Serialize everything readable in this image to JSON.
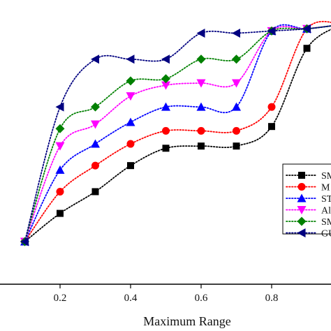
{
  "chart_data": {
    "type": "line",
    "xlabel": "Maximum Range",
    "ylabel": "",
    "xlim": [
      0.0,
      1.0
    ],
    "ylim": [
      0.0,
      1.0
    ],
    "xticks": [
      0.2,
      0.4,
      0.6,
      0.8
    ],
    "xtick_labels": [
      "0.2",
      "0.4",
      "0.6",
      "0.8"
    ],
    "legend_position": "right",
    "smoothed": true,
    "series": [
      {
        "name": "SM",
        "color": "#000000",
        "marker": "square",
        "x": [
          0.1,
          0.2,
          0.3,
          0.4,
          0.5,
          0.6,
          0.7,
          0.8,
          0.9,
          1.0
        ],
        "y": [
          0.0,
          0.13,
          0.23,
          0.35,
          0.43,
          0.44,
          0.44,
          0.53,
          0.89,
          1.0
        ]
      },
      {
        "name": "M",
        "color": "#ff0000",
        "marker": "circle",
        "x": [
          0.1,
          0.2,
          0.3,
          0.4,
          0.5,
          0.6,
          0.7,
          0.8,
          0.9,
          1.0
        ],
        "y": [
          0.0,
          0.23,
          0.35,
          0.45,
          0.51,
          0.51,
          0.51,
          0.62,
          0.98,
          1.0
        ]
      },
      {
        "name": "ST",
        "color": "#0000ff",
        "marker": "triangle-up",
        "x": [
          0.1,
          0.2,
          0.3,
          0.4,
          0.5,
          0.6,
          0.7,
          0.8,
          0.9,
          1.0
        ],
        "y": [
          0.0,
          0.33,
          0.45,
          0.55,
          0.62,
          0.62,
          0.62,
          0.97,
          0.98,
          1.0
        ]
      },
      {
        "name": "Al",
        "color": "#ff00ff",
        "marker": "triangle-down",
        "x": [
          0.1,
          0.2,
          0.3,
          0.4,
          0.5,
          0.6,
          0.7,
          0.8,
          0.9,
          1.0
        ],
        "y": [
          0.0,
          0.44,
          0.54,
          0.67,
          0.72,
          0.73,
          0.73,
          0.97,
          0.98,
          1.0
        ]
      },
      {
        "name": "SM",
        "color": "#008000",
        "marker": "diamond",
        "x": [
          0.1,
          0.2,
          0.3,
          0.4,
          0.5,
          0.6,
          0.7,
          0.8,
          0.9,
          1.0
        ],
        "y": [
          0.0,
          0.52,
          0.62,
          0.74,
          0.75,
          0.84,
          0.84,
          0.97,
          0.98,
          1.0
        ]
      },
      {
        "name": "GU",
        "color": "#000080",
        "marker": "triangle-left",
        "x": [
          0.1,
          0.2,
          0.3,
          0.4,
          0.5,
          0.6,
          0.7,
          0.8,
          0.9,
          1.0
        ],
        "y": [
          0.0,
          0.62,
          0.84,
          0.84,
          0.84,
          0.96,
          0.96,
          0.97,
          0.98,
          1.0
        ]
      }
    ]
  }
}
